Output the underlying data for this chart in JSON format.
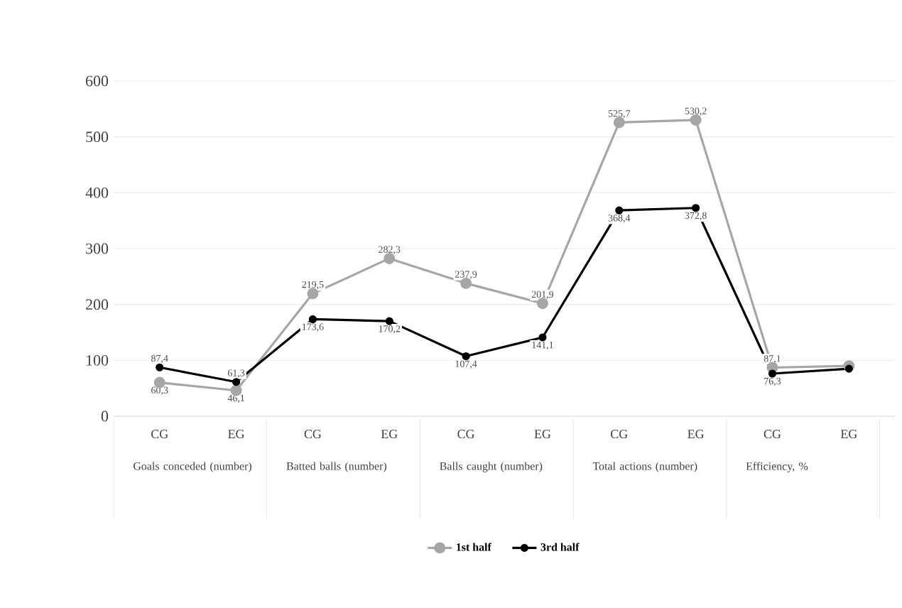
{
  "chart_data": {
    "type": "line",
    "categories": [
      "CG",
      "EG",
      "CG",
      "EG",
      "CG",
      "EG",
      "CG",
      "EG",
      "CG",
      "EG"
    ],
    "annotations": [
      "Goals conceded (number)",
      "Batted balls (number)",
      "Balls caught (number)",
      "Total actions (number)",
      "Efficiency, %"
    ],
    "series": [
      {
        "name": "1st half",
        "color": "#a6a6a6",
        "values": [
          60.3,
          46.1,
          219.5,
          282.3,
          237.9,
          201.9,
          525.7,
          530.2,
          87.1,
          90
        ],
        "value_labels": [
          "60,3",
          "46,1",
          "219,5",
          "282,3",
          "237,9",
          "201,9",
          "525,7",
          "530,2",
          "87,1",
          null
        ]
      },
      {
        "name": "3rd half",
        "color": "#000000",
        "values": [
          87.4,
          61.3,
          173.6,
          170.2,
          107.4,
          141.1,
          368.4,
          372.8,
          76.3,
          85
        ],
        "value_labels": [
          "87,4",
          "61,3",
          "173,6",
          "170,2",
          "107,4",
          "141,1",
          "368,4",
          "372,8",
          "76,3",
          null
        ]
      }
    ],
    "ylim": [
      0,
      600
    ],
    "yticks": [
      0,
      100,
      200,
      300,
      400,
      500,
      600
    ],
    "grid": "y",
    "legend": "bottom",
    "marker": "circle",
    "line_style": "solid"
  }
}
